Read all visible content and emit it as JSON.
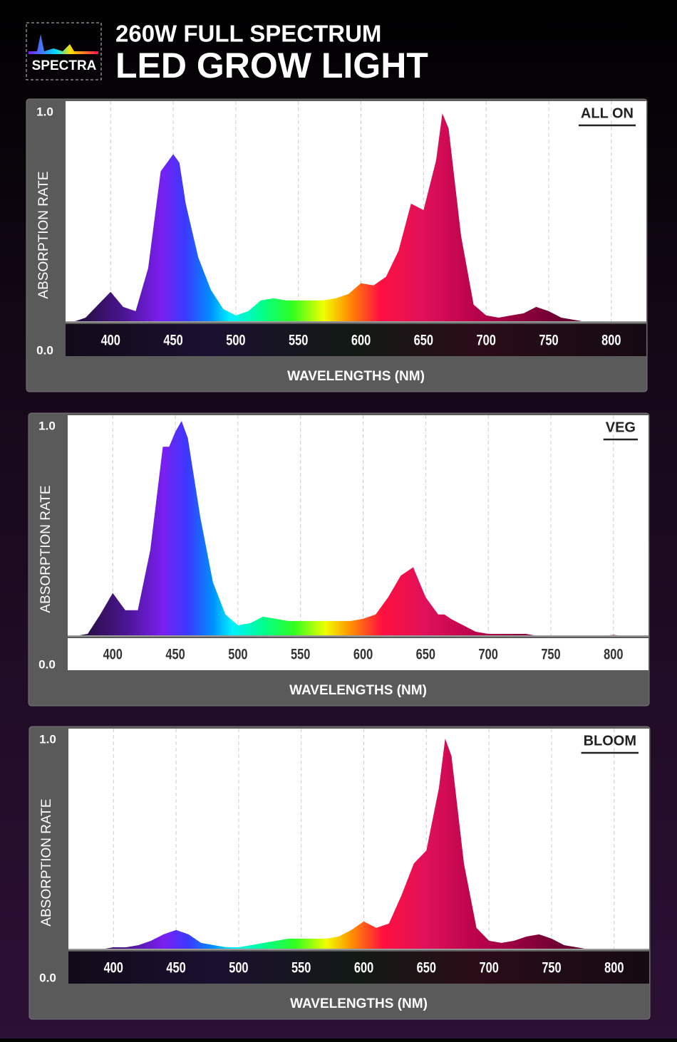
{
  "header": {
    "brand": "SPECTRA",
    "title_line1": "260W FULL SPECTRUM",
    "title_line2": "LED GROW LIGHT"
  },
  "spectrum": [
    {
      "x": 380,
      "color": "#2a0f4a"
    },
    {
      "x": 410,
      "color": "#4a1590"
    },
    {
      "x": 440,
      "color": "#7a1ff0"
    },
    {
      "x": 460,
      "color": "#3a3aff"
    },
    {
      "x": 480,
      "color": "#0090ff"
    },
    {
      "x": 495,
      "color": "#00f0ff"
    },
    {
      "x": 520,
      "color": "#00ff90"
    },
    {
      "x": 545,
      "color": "#30ff20"
    },
    {
      "x": 570,
      "color": "#f0ff00"
    },
    {
      "x": 590,
      "color": "#ff9000"
    },
    {
      "x": 615,
      "color": "#ff1040"
    },
    {
      "x": 650,
      "color": "#e0105a"
    },
    {
      "x": 700,
      "color": "#b00048"
    },
    {
      "x": 760,
      "color": "#6a0030"
    }
  ],
  "chart_data": [
    {
      "type": "area",
      "title": "ALL ON",
      "xlabel": "WAVELENGTHS (NM)",
      "ylabel": "ABSORPTION RATE",
      "x_band": true,
      "x": [
        370,
        380,
        390,
        400,
        410,
        420,
        430,
        440,
        445,
        450,
        455,
        460,
        470,
        480,
        490,
        500,
        510,
        520,
        530,
        540,
        550,
        560,
        570,
        580,
        590,
        600,
        610,
        620,
        630,
        640,
        650,
        660,
        665,
        670,
        680,
        690,
        700,
        710,
        720,
        730,
        740,
        750,
        760,
        770,
        780,
        790,
        800,
        810,
        820
      ],
      "values": [
        0,
        0.02,
        0.08,
        0.14,
        0.07,
        0.05,
        0.25,
        0.7,
        0.74,
        0.78,
        0.74,
        0.55,
        0.3,
        0.15,
        0.06,
        0.03,
        0.05,
        0.1,
        0.11,
        0.1,
        0.1,
        0.1,
        0.1,
        0.11,
        0.13,
        0.18,
        0.17,
        0.21,
        0.33,
        0.55,
        0.52,
        0.75,
        0.97,
        0.9,
        0.4,
        0.08,
        0.03,
        0.02,
        0.03,
        0.04,
        0.07,
        0.05,
        0.02,
        0.01,
        0,
        0,
        0,
        0,
        0
      ],
      "xlim": [
        364,
        828
      ],
      "xticks": [
        400,
        450,
        500,
        550,
        600,
        650,
        700,
        750,
        800
      ],
      "ylim": [
        0,
        1
      ],
      "yticks": [
        {
          "value": 0,
          "label": "0.0"
        },
        {
          "value": 1,
          "label": "1.0"
        }
      ],
      "grid": true
    },
    {
      "type": "area",
      "title": "VEG",
      "xlabel": "WAVELENGTHS (NM)",
      "ylabel": "ABSORPTION RATE",
      "x_band": false,
      "x": [
        370,
        380,
        390,
        400,
        410,
        420,
        430,
        440,
        445,
        450,
        455,
        460,
        470,
        480,
        490,
        500,
        510,
        520,
        530,
        540,
        550,
        560,
        570,
        580,
        590,
        600,
        610,
        620,
        630,
        640,
        650,
        660,
        665,
        670,
        680,
        690,
        700,
        710,
        720,
        730,
        740,
        750,
        760,
        770,
        780,
        790,
        800,
        810,
        820
      ],
      "values": [
        0,
        0.01,
        0.1,
        0.2,
        0.12,
        0.12,
        0.4,
        0.88,
        0.88,
        0.95,
        1.0,
        0.92,
        0.55,
        0.25,
        0.1,
        0.05,
        0.06,
        0.09,
        0.08,
        0.07,
        0.07,
        0.07,
        0.07,
        0.07,
        0.07,
        0.08,
        0.1,
        0.18,
        0.28,
        0.32,
        0.18,
        0.1,
        0.1,
        0.08,
        0.05,
        0.02,
        0.01,
        0.01,
        0.01,
        0.01,
        0,
        0,
        0,
        0,
        0,
        0,
        0.005,
        0,
        0
      ],
      "xlim": [
        364,
        828
      ],
      "xticks": [
        400,
        450,
        500,
        550,
        600,
        650,
        700,
        750,
        800
      ],
      "ylim": [
        0,
        1
      ],
      "yticks": [
        {
          "value": 0,
          "label": "0.0"
        },
        {
          "value": 1,
          "label": "1.0"
        }
      ],
      "grid": true
    },
    {
      "type": "area",
      "title": "BLOOM",
      "xlabel": "WAVELENGTHS (NM)",
      "ylabel": "ABSORPTION RATE",
      "x_band": true,
      "x": [
        370,
        380,
        390,
        400,
        410,
        420,
        430,
        440,
        445,
        450,
        455,
        460,
        470,
        480,
        490,
        500,
        510,
        520,
        530,
        540,
        550,
        560,
        570,
        580,
        590,
        600,
        610,
        620,
        630,
        640,
        650,
        660,
        665,
        670,
        680,
        690,
        700,
        710,
        720,
        730,
        740,
        750,
        760,
        770,
        780,
        790,
        800,
        810,
        820
      ],
      "values": [
        0,
        0,
        0,
        0.01,
        0.01,
        0.02,
        0.04,
        0.07,
        0.08,
        0.09,
        0.08,
        0.07,
        0.03,
        0.02,
        0.01,
        0.01,
        0.02,
        0.03,
        0.04,
        0.05,
        0.05,
        0.05,
        0.05,
        0.06,
        0.09,
        0.13,
        0.1,
        0.12,
        0.25,
        0.4,
        0.46,
        0.75,
        0.98,
        0.9,
        0.4,
        0.1,
        0.04,
        0.03,
        0.04,
        0.06,
        0.07,
        0.05,
        0.02,
        0.01,
        0,
        0,
        0,
        0,
        0
      ],
      "xlim": [
        364,
        828
      ],
      "xticks": [
        400,
        450,
        500,
        550,
        600,
        650,
        700,
        750,
        800
      ],
      "ylim": [
        0,
        1
      ],
      "yticks": [
        {
          "value": 0,
          "label": "0.0"
        },
        {
          "value": 1,
          "label": "1.0"
        }
      ],
      "grid": true
    }
  ]
}
